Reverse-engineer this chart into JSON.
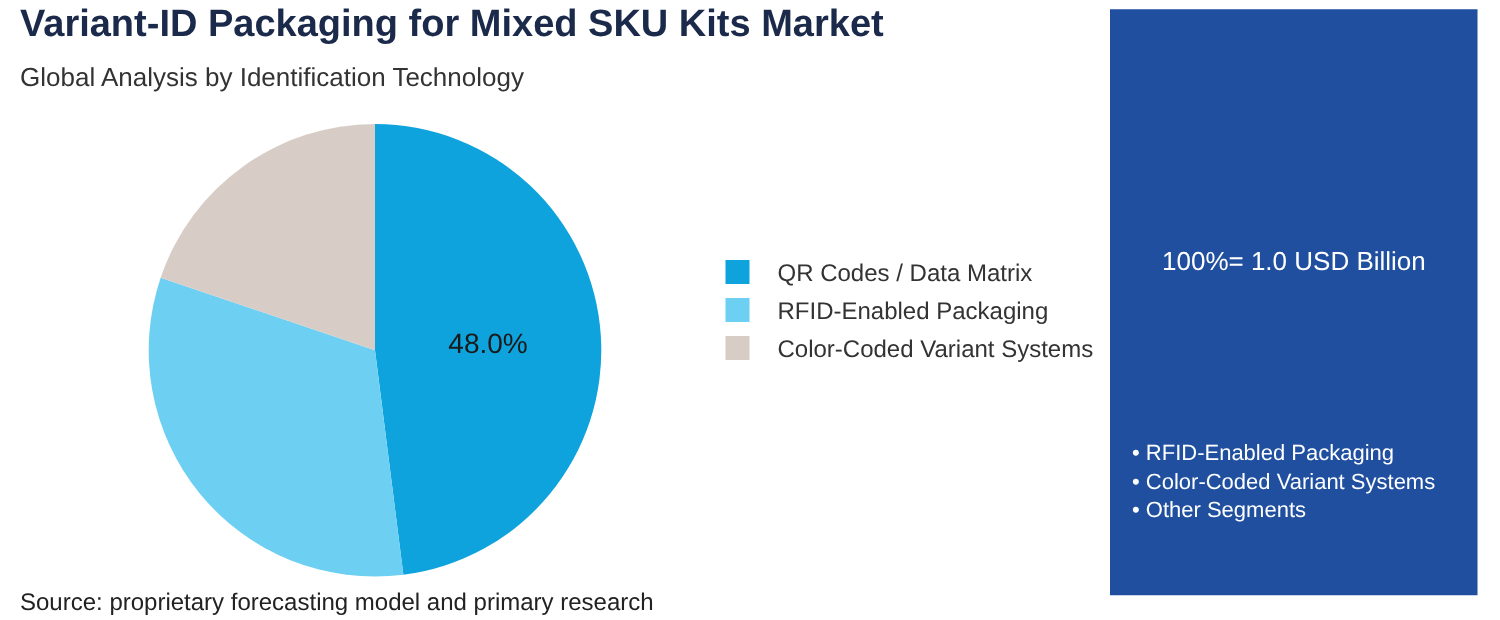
{
  "chart_data": {
    "type": "pie",
    "title": "Variant-ID Packaging for Mixed SKU Kits Market",
    "subtitle": "Global Analysis by Identification Technology",
    "categories": [
      "QR Codes / Data Matrix",
      "RFID-Enabled Packaging",
      "Color-Coded Variant Systems"
    ],
    "values": [
      48.0,
      32.2,
      19.8
    ],
    "colors": [
      "#0fa3dd",
      "#6dcff2",
      "#d8cdc6"
    ],
    "value_labels": [
      "48.0%",
      null,
      null
    ],
    "legend": "right",
    "annotations": [
      "Source: proprietary forecasting model and primary research",
      "100%= 1.0 USD Billion",
      "• RFID-Enabled Packaging\n• Color-Coded Variant Systems\n• Other Segments"
    ]
  }
}
